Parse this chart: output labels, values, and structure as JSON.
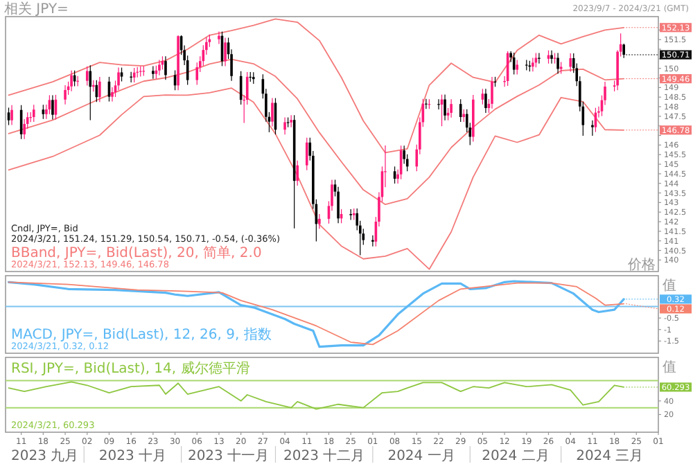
{
  "chart_data": [
    {
      "type": "candlestick",
      "title": "相关 JPY=",
      "subtitle": "2023/9/7 - 2024/3/21 (GMT)",
      "ylabel": "价格",
      "tick_labels": "y",
      "annotations": [
        "Cndl, JPY=, Bid",
        "2024/3/21, 151.24, 151.29, 150.54, 150.71, -0.54, (-0.36%)",
        "BBand, JPY=, Bid(Last), 20, 简单, 2.0",
        "2024/3/21, 152.13, 149.46, 146.78",
        {
          "text": "150.71",
          "x": "2024-03-21",
          "y": 150.71
        }
      ],
      "xlim": [
        "2023-09-06",
        "2024-04-01"
      ],
      "ylim": [
        139.4,
        152.7
      ],
      "yticks": [
        140,
        140.5,
        141,
        141.5,
        142,
        142.5,
        143,
        143.5,
        144,
        144.5,
        145,
        145.5,
        146,
        {
          "value": 146.5,
          "label": null
        },
        {
          "value": 147,
          "label": null
        },
        147.5,
        148,
        148.5,
        149,
        {
          "value": 149.5,
          "label": null
        },
        150,
        {
          "value": 150.5,
          "label": null
        },
        {
          "value": 151,
          "label": null
        },
        151.5,
        {
          "value": 152,
          "label": null
        }
      ],
      "x": [
        "2023-09-07",
        "2023-09-08",
        "2023-09-11",
        "2023-09-12",
        "2023-09-13",
        "2023-09-14",
        "2023-09-15",
        "2023-09-18",
        "2023-09-19",
        "2023-09-20",
        "2023-09-21",
        "2023-09-22",
        "2023-09-25",
        "2023-09-26",
        "2023-09-27",
        "2023-09-28",
        "2023-09-29",
        "2023-10-02",
        "2023-10-03",
        "2023-10-04",
        "2023-10-05",
        "2023-10-06",
        "2023-10-09",
        "2023-10-10",
        "2023-10-11",
        "2023-10-12",
        "2023-10-13",
        "2023-10-16",
        "2023-10-17",
        "2023-10-18",
        "2023-10-19",
        "2023-10-20",
        "2023-10-23",
        "2023-10-24",
        "2023-10-25",
        "2023-10-26",
        "2023-10-27",
        "2023-10-30",
        "2023-10-31",
        "2023-11-01",
        "2023-11-02",
        "2023-11-03",
        "2023-11-06",
        "2023-11-07",
        "2023-11-08",
        "2023-11-09",
        "2023-11-10",
        "2023-11-13",
        "2023-11-14",
        "2023-11-15",
        "2023-11-16",
        "2023-11-17",
        "2023-11-20",
        "2023-11-21",
        "2023-11-22",
        "2023-11-23",
        "2023-11-24",
        "2023-11-27",
        "2023-11-28",
        "2023-11-29",
        "2023-11-30",
        "2023-12-01",
        "2023-12-04",
        "2023-12-05",
        "2023-12-06",
        "2023-12-07",
        "2023-12-08",
        "2023-12-11",
        "2023-12-12",
        "2023-12-13",
        "2023-12-14",
        "2023-12-15",
        "2023-12-18",
        "2023-12-19",
        "2023-12-20",
        "2023-12-21",
        "2023-12-22",
        "2023-12-25",
        "2023-12-26",
        "2023-12-27",
        "2023-12-28",
        "2023-12-29",
        "2024-01-01",
        "2024-01-02",
        "2024-01-03",
        "2024-01-04",
        "2024-01-05",
        "2024-01-08",
        "2024-01-09",
        "2024-01-10",
        "2024-01-11",
        "2024-01-12",
        "2024-01-15",
        "2024-01-16",
        "2024-01-17",
        "2024-01-18",
        "2024-01-19",
        "2024-01-22",
        "2024-01-23",
        "2024-01-24",
        "2024-01-25",
        "2024-01-26",
        "2024-01-29",
        "2024-01-30",
        "2024-01-31",
        "2024-02-01",
        "2024-02-02",
        "2024-02-05",
        "2024-02-06",
        "2024-02-07",
        "2024-02-08",
        "2024-02-09",
        "2024-02-12",
        "2024-02-13",
        "2024-02-14",
        "2024-02-15",
        "2024-02-16",
        "2024-02-19",
        "2024-02-20",
        "2024-02-21",
        "2024-02-22",
        "2024-02-23",
        "2024-02-26",
        "2024-02-27",
        "2024-02-28",
        "2024-02-29",
        "2024-03-01",
        "2024-03-04",
        "2024-03-05",
        "2024-03-06",
        "2024-03-07",
        "2024-03-08",
        "2024-03-11",
        "2024-03-12",
        "2024-03-13",
        "2024-03-14",
        "2024-03-15",
        "2024-03-18",
        "2024-03-19",
        "2024-03-20",
        "2024-03-21"
      ],
      "ohlc": [
        [
          147.7,
          147.95,
          147.04,
          147.29
        ],
        [
          147.29,
          148.08,
          147.04,
          147.83
        ],
        [
          147.83,
          148.08,
          146.31,
          146.56
        ],
        [
          146.56,
          147.35,
          146.31,
          147.1
        ],
        [
          147.1,
          147.7,
          146.85,
          147.45
        ],
        [
          147.45,
          147.71,
          147.2,
          147.46
        ],
        [
          147.46,
          148.1,
          147.21,
          147.85
        ],
        [
          147.85,
          148.1,
          147.36,
          147.61
        ],
        [
          147.61,
          148.11,
          147.36,
          147.86
        ],
        [
          147.86,
          148.6,
          147.61,
          148.35
        ],
        [
          148.35,
          148.6,
          147.33,
          147.58
        ],
        [
          147.58,
          148.62,
          147.33,
          148.37
        ],
        [
          148.37,
          149.12,
          148.12,
          148.87
        ],
        [
          148.87,
          149.31,
          148.62,
          149.06
        ],
        [
          149.06,
          149.89,
          148.81,
          149.64
        ],
        [
          149.64,
          149.89,
          149.07,
          149.32
        ],
        [
          149.32,
          149.6,
          149.07,
          149.35
        ],
        [
          149.35,
          150.11,
          149.1,
          149.86
        ],
        [
          149.86,
          150.16,
          147.3,
          149.04
        ],
        [
          149.04,
          149.38,
          148.79,
          149.13
        ],
        [
          149.13,
          149.38,
          148.25,
          148.5
        ],
        [
          148.5,
          149.56,
          148.25,
          149.31
        ],
        [
          149.31,
          149.56,
          148.27,
          148.52
        ],
        [
          148.52,
          149.01,
          148.27,
          148.76
        ],
        [
          148.76,
          149.36,
          148.51,
          149.11
        ],
        [
          149.11,
          150.04,
          148.86,
          149.79
        ],
        [
          149.79,
          150.04,
          149.32,
          149.57
        ],
        [
          149.57,
          149.82,
          149.27,
          149.52
        ],
        [
          149.52,
          150.03,
          149.27,
          149.78
        ],
        [
          149.78,
          150.07,
          149.53,
          149.82
        ],
        [
          149.82,
          150.11,
          149.57,
          149.86
        ],
        [
          149.86,
          150.12,
          149.61,
          149.87
        ],
        [
          149.87,
          150.12,
          149.46,
          149.71
        ],
        [
          149.71,
          150.14,
          149.46,
          149.89
        ],
        [
          149.89,
          150.44,
          149.64,
          150.19
        ],
        [
          150.19,
          150.63,
          149.94,
          150.38
        ],
        [
          150.38,
          150.63,
          149.4,
          149.65
        ],
        [
          149.65,
          149.9,
          148.86,
          149.11
        ],
        [
          149.11,
          151.72,
          148.86,
          151.68
        ],
        [
          151.68,
          151.72,
          150.7,
          150.95
        ],
        [
          150.95,
          151.2,
          150.17,
          150.42
        ],
        [
          150.42,
          150.67,
          149.14,
          149.39
        ],
        [
          149.39,
          150.31,
          149.14,
          150.06
        ],
        [
          150.06,
          150.63,
          149.81,
          150.38
        ],
        [
          150.38,
          151.21,
          150.13,
          150.96
        ],
        [
          150.96,
          151.62,
          150.71,
          151.37
        ],
        [
          151.37,
          151.77,
          151.12,
          151.52
        ],
        [
          151.52,
          151.92,
          151.27,
          151.7
        ],
        [
          151.7,
          151.92,
          150.12,
          150.37
        ],
        [
          150.37,
          151.6,
          150.12,
          151.35
        ],
        [
          151.35,
          151.6,
          150.49,
          150.74
        ],
        [
          150.74,
          150.99,
          149.35,
          149.6
        ],
        [
          149.6,
          149.85,
          148.11,
          148.36
        ],
        [
          148.36,
          148.61,
          147.15,
          148.36
        ],
        [
          148.36,
          149.81,
          148.11,
          149.56
        ],
        [
          149.56,
          149.81,
          149.3,
          149.55
        ],
        [
          149.55,
          149.8,
          149.19,
          149.44
        ],
        [
          149.44,
          149.69,
          148.43,
          148.68
        ],
        [
          148.68,
          148.93,
          147.22,
          147.47
        ],
        [
          147.47,
          147.72,
          146.67,
          147.22
        ],
        [
          147.22,
          148.45,
          146.97,
          148.2
        ],
        [
          148.2,
          148.45,
          146.55,
          146.8
        ],
        [
          146.8,
          147.44,
          146.55,
          147.19
        ],
        [
          147.19,
          147.44,
          146.93,
          147.18
        ],
        [
          147.18,
          147.56,
          146.93,
          147.31
        ],
        [
          147.31,
          147.56,
          141.65,
          144.13
        ],
        [
          144.13,
          145.19,
          143.88,
          144.94
        ],
        [
          144.94,
          146.38,
          144.69,
          146.13
        ],
        [
          146.13,
          146.38,
          145.19,
          145.44
        ],
        [
          145.44,
          145.69,
          142.67,
          142.92
        ],
        [
          142.92,
          143.17,
          140.97,
          141.88
        ],
        [
          141.88,
          142.4,
          141.63,
          142.15
        ],
        [
          142.15,
          143.07,
          141.9,
          142.82
        ],
        [
          142.82,
          144.19,
          142.57,
          143.94
        ],
        [
          143.94,
          144.19,
          143.32,
          143.57
        ],
        [
          143.57,
          143.82,
          141.92,
          142.17
        ],
        [
          142.17,
          142.65,
          141.92,
          142.4
        ],
        [
          142.4,
          142.65,
          142.09,
          142.34
        ],
        [
          142.34,
          142.69,
          142.09,
          142.44
        ],
        [
          142.44,
          142.69,
          141.55,
          141.8
        ],
        [
          141.8,
          142.05,
          140.25,
          141.38
        ],
        [
          141.38,
          141.63,
          140.79,
          141.04
        ],
        [
          141.04,
          141.29,
          140.71,
          140.96
        ],
        [
          140.96,
          142.25,
          140.71,
          142.0
        ],
        [
          142.0,
          143.54,
          141.75,
          143.29
        ],
        [
          143.29,
          144.88,
          143.04,
          144.63
        ],
        [
          144.63,
          145.98,
          143.8,
          144.63
        ],
        [
          144.63,
          144.88,
          143.99,
          144.24
        ],
        [
          144.24,
          144.72,
          143.99,
          144.47
        ],
        [
          144.47,
          145.97,
          144.22,
          145.72
        ],
        [
          145.72,
          145.97,
          145.02,
          145.27
        ],
        [
          145.27,
          145.52,
          144.63,
          144.88
        ],
        [
          144.88,
          146.02,
          144.63,
          145.77
        ],
        [
          145.77,
          147.44,
          145.52,
          147.19
        ],
        [
          147.19,
          148.41,
          146.94,
          148.16
        ],
        [
          148.16,
          148.41,
          147.88,
          148.13
        ],
        [
          148.13,
          148.39,
          147.88,
          148.14
        ],
        [
          148.14,
          148.39,
          147.86,
          148.11
        ],
        [
          148.11,
          148.63,
          146.98,
          148.38
        ],
        [
          148.38,
          148.63,
          147.29,
          147.54
        ],
        [
          147.54,
          147.93,
          147.29,
          147.68
        ],
        [
          147.68,
          148.39,
          147.43,
          148.14
        ],
        [
          148.14,
          148.39,
          147.21,
          147.46
        ],
        [
          147.46,
          147.87,
          147.21,
          147.62
        ],
        [
          147.62,
          147.87,
          146.66,
          146.91
        ],
        [
          146.91,
          147.16,
          146.0,
          146.43
        ],
        [
          146.43,
          148.62,
          146.18,
          148.37
        ],
        [
          148.37,
          148.93,
          148.12,
          148.68
        ],
        [
          148.68,
          148.93,
          147.68,
          147.93
        ],
        [
          147.93,
          148.4,
          147.68,
          148.15
        ],
        [
          148.15,
          149.56,
          147.9,
          149.31
        ],
        [
          149.31,
          149.56,
          149.04,
          149.29
        ],
        [
          149.29,
          149.59,
          149.04,
          149.34
        ],
        [
          149.34,
          150.89,
          149.09,
          150.8
        ],
        [
          150.8,
          150.89,
          150.32,
          150.57
        ],
        [
          150.57,
          150.82,
          149.68,
          149.93
        ],
        [
          149.93,
          150.44,
          149.68,
          150.19
        ],
        [
          150.19,
          150.44,
          149.9,
          150.15
        ],
        [
          150.15,
          150.4,
          149.84,
          150.09
        ],
        [
          150.09,
          150.55,
          149.84,
          150.3
        ],
        [
          150.3,
          150.8,
          150.05,
          150.55
        ],
        [
          150.55,
          150.8,
          150.25,
          150.5
        ],
        [
          150.5,
          150.94,
          150.25,
          150.69
        ],
        [
          150.69,
          150.94,
          150.25,
          150.5
        ],
        [
          150.5,
          150.8,
          150.25,
          150.55
        ],
        [
          150.55,
          150.8,
          149.72,
          149.97
        ],
        [
          149.97,
          150.33,
          149.72,
          150.08
        ],
        [
          150.08,
          150.78,
          149.83,
          150.53
        ],
        [
          150.53,
          150.78,
          149.76,
          150.01
        ],
        [
          150.01,
          150.26,
          149.08,
          149.33
        ],
        [
          149.33,
          149.58,
          147.76,
          148.01
        ],
        [
          148.01,
          148.26,
          146.48,
          147.04
        ],
        [
          147.04,
          147.29,
          146.48,
          146.93
        ],
        [
          146.93,
          147.94,
          146.68,
          147.69
        ],
        [
          147.69,
          148.01,
          147.44,
          147.76
        ],
        [
          147.76,
          148.59,
          147.51,
          148.34
        ],
        [
          148.34,
          149.3,
          148.09,
          149.05
        ],
        [
          149.05,
          149.36,
          148.8,
          149.11
        ],
        [
          149.11,
          150.95,
          148.86,
          150.87
        ],
        [
          150.87,
          151.82,
          150.62,
          151.26
        ],
        [
          151.24,
          151.29,
          150.54,
          150.71
        ]
      ],
      "series": [
        {
          "type": "line",
          "color": "#f47a7a",
          "x": [
            "2023-09-07",
            "2023-09-21",
            "2023-10-06",
            "2023-10-13",
            "2023-10-20",
            "2023-10-27",
            "2023-11-03",
            "2023-11-10",
            "2023-11-17",
            "2023-11-24",
            "2023-12-01",
            "2023-12-08",
            "2023-12-15",
            "2023-12-22",
            "2023-12-29",
            "2024-01-05",
            "2024-01-12",
            "2024-01-19",
            "2024-01-26",
            "2024-02-02",
            "2024-02-09",
            "2024-02-16",
            "2024-02-23",
            "2024-03-01",
            "2024-03-08",
            "2024-03-15",
            "2024-03-21"
          ],
          "values": [
            148.6,
            149.3,
            150.31,
            150.18,
            150.13,
            150.41,
            151.0,
            151.73,
            151.97,
            152.24,
            152.58,
            152.41,
            151.45,
            149.53,
            147.26,
            145.6,
            145.8,
            149.12,
            150.27,
            149.53,
            149.27,
            150.94,
            151.73,
            151.28,
            151.66,
            152.0,
            152.13
          ],
          "value_labels": [
            null,
            null,
            null,
            null,
            null,
            null,
            null,
            null,
            null,
            null,
            null,
            null,
            null,
            null,
            null,
            null,
            null,
            null,
            null,
            null,
            null,
            null,
            null,
            null,
            null,
            null,
            "152.13"
          ]
        },
        {
          "type": "line",
          "color": "#f47a7a",
          "x": [
            "2023-09-07",
            "2023-09-21",
            "2023-10-06",
            "2023-10-13",
            "2023-10-20",
            "2023-10-27",
            "2023-11-03",
            "2023-11-10",
            "2023-11-17",
            "2023-11-24",
            "2023-12-01",
            "2023-12-08",
            "2023-12-15",
            "2023-12-22",
            "2023-12-29",
            "2024-01-05",
            "2024-01-12",
            "2024-01-19",
            "2024-01-26",
            "2024-02-02",
            "2024-02-09",
            "2024-02-16",
            "2024-02-23",
            "2024-03-01",
            "2024-03-08",
            "2024-03-15",
            "2024-03-21"
          ],
          "values": [
            146.6,
            147.3,
            148.41,
            148.88,
            149.33,
            149.51,
            149.8,
            150.23,
            150.47,
            150.24,
            149.58,
            148.41,
            146.65,
            145.13,
            143.66,
            142.9,
            143.2,
            144.32,
            145.87,
            146.93,
            147.87,
            148.54,
            149.13,
            149.88,
            149.96,
            149.4,
            149.46
          ],
          "value_labels": [
            null,
            null,
            null,
            null,
            null,
            null,
            null,
            null,
            null,
            null,
            null,
            null,
            null,
            null,
            null,
            null,
            null,
            null,
            null,
            null,
            null,
            null,
            null,
            null,
            null,
            null,
            "149.46"
          ]
        },
        {
          "type": "line",
          "color": "#f47a7a",
          "x": [
            "2023-09-07",
            "2023-09-21",
            "2023-10-06",
            "2023-10-13",
            "2023-10-20",
            "2023-10-27",
            "2023-11-03",
            "2023-11-10",
            "2023-11-17",
            "2023-11-24",
            "2023-12-01",
            "2023-12-08",
            "2023-12-15",
            "2023-12-22",
            "2023-12-29",
            "2024-01-05",
            "2024-01-12",
            "2024-01-19",
            "2024-01-26",
            "2024-02-02",
            "2024-02-09",
            "2024-02-16",
            "2024-02-23",
            "2024-03-01",
            "2024-03-08",
            "2024-03-15",
            "2024-03-21"
          ],
          "values": [
            144.7,
            145.4,
            146.51,
            147.58,
            148.53,
            148.61,
            148.6,
            148.73,
            148.97,
            148.24,
            146.58,
            144.41,
            141.85,
            140.73,
            140.06,
            140.2,
            140.6,
            139.52,
            141.47,
            144.33,
            146.47,
            146.14,
            146.53,
            148.48,
            148.26,
            146.8,
            146.78
          ],
          "value_labels": [
            null,
            null,
            null,
            null,
            null,
            null,
            null,
            null,
            null,
            null,
            null,
            null,
            null,
            null,
            null,
            null,
            null,
            null,
            null,
            null,
            null,
            null,
            null,
            null,
            null,
            null,
            "146.78"
          ]
        }
      ]
    },
    {
      "type": "line",
      "ylabel": "值",
      "tick_labels": "y",
      "annotations": [
        "MACD, JPY=, Bid(Last), 12, 26, 9, 指数",
        "2024/3/21, 0.32, 0.12"
      ],
      "xlim": [
        "2023-09-06",
        "2024-04-01"
      ],
      "ylim": [
        -2.03,
        1.34
      ],
      "yticks": [
        -1.5,
        -1,
        -0.5
      ],
      "ref_lines": [
        {
          "axis": "y",
          "value": 0,
          "color": "#7cc4f2"
        }
      ],
      "series": [
        {
          "color": "#5bb8f5",
          "x": [
            "2023-09-07",
            "2023-09-15",
            "2023-09-26",
            "2023-10-11",
            "2023-10-27",
            "2023-10-30",
            "2023-11-03",
            "2023-11-13",
            "2023-11-20",
            "2023-11-24",
            "2023-12-04",
            "2023-12-07",
            "2023-12-13",
            "2023-12-15",
            "2023-12-22",
            "2023-12-29",
            "2024-01-03",
            "2024-01-09",
            "2024-01-17",
            "2024-01-23",
            "2024-01-29",
            "2024-02-01",
            "2024-02-06",
            "2024-02-12",
            "2024-02-15",
            "2024-02-27",
            "2024-03-05",
            "2024-03-11",
            "2024-03-13",
            "2024-03-18",
            "2024-03-21"
          ],
          "values": [
            1.06,
            0.96,
            0.76,
            0.72,
            0.6,
            0.52,
            0.46,
            0.62,
            0.06,
            -0.04,
            -0.54,
            -0.75,
            -1.05,
            -1.75,
            -1.69,
            -1.69,
            -1.25,
            -0.34,
            0.56,
            1.0,
            1.0,
            0.76,
            0.8,
            1.06,
            1.1,
            1.02,
            0.56,
            -0.14,
            -0.24,
            -0.14,
            0.32
          ],
          "value_labels": [
            null,
            null,
            null,
            null,
            null,
            null,
            null,
            null,
            null,
            null,
            null,
            null,
            null,
            null,
            null,
            null,
            null,
            null,
            null,
            null,
            null,
            null,
            null,
            null,
            null,
            null,
            null,
            null,
            null,
            null,
            "0.32"
          ]
        },
        {
          "color": "#f5826e",
          "x": [
            "2023-09-07",
            "2023-09-26",
            "2023-10-18",
            "2023-11-03",
            "2023-11-14",
            "2023-11-20",
            "2023-11-30",
            "2023-12-14",
            "2023-12-25",
            "2024-01-01",
            "2024-01-09",
            "2024-01-22",
            "2024-01-29",
            "2024-02-12",
            "2024-02-16",
            "2024-02-27",
            "2024-03-06",
            "2024-03-12",
            "2024-03-15",
            "2024-03-21"
          ],
          "values": [
            1.06,
            0.96,
            0.72,
            0.66,
            0.6,
            0.26,
            -0.14,
            -0.84,
            -1.55,
            -1.65,
            -1.05,
            0.26,
            0.76,
            0.96,
            1.02,
            1.02,
            0.86,
            0.36,
            0.06,
            0.12
          ],
          "value_labels": [
            null,
            null,
            null,
            null,
            null,
            null,
            null,
            null,
            null,
            null,
            null,
            null,
            null,
            null,
            null,
            null,
            null,
            null,
            null,
            "0.12"
          ]
        }
      ]
    },
    {
      "type": "line",
      "ylabel": "值",
      "annotations": [
        "RSI, JPY=, Bid(Last), 14, 威尔德平滑",
        "2024/3/21, 60.293",
        "2023 九月",
        "2023 十月",
        "2023 十一月",
        "2023 十二月",
        "2024 一月",
        "2024 二月",
        "2024 三月"
      ],
      "xlim": [
        "2023-09-06",
        "2024-04-01"
      ],
      "ylim": [
        -6,
        104
      ],
      "yticks": [
        20,
        40
      ],
      "xticks": [
        {
          "value": "2023-09-11",
          "label": "11"
        },
        {
          "value": "2023-09-18",
          "label": "18"
        },
        {
          "value": "2023-09-25",
          "label": "25"
        },
        {
          "value": "2023-10-02",
          "label": "02"
        },
        {
          "value": "2023-10-09",
          "label": "09"
        },
        {
          "value": "2023-10-16",
          "label": "16"
        },
        {
          "value": "2023-10-23",
          "label": "23"
        },
        {
          "value": "2023-10-30",
          "label": "30"
        },
        {
          "value": "2023-11-06",
          "label": "06"
        },
        {
          "value": "2023-11-13",
          "label": "13"
        },
        {
          "value": "2023-11-20",
          "label": "20"
        },
        {
          "value": "2023-11-27",
          "label": "27"
        },
        {
          "value": "2023-12-04",
          "label": "04"
        },
        {
          "value": "2023-12-11",
          "label": "11"
        },
        {
          "value": "2023-12-18",
          "label": "18"
        },
        {
          "value": "2023-12-25",
          "label": "25"
        },
        {
          "value": "2024-01-01",
          "label": "01"
        },
        {
          "value": "2024-01-08",
          "label": "08"
        },
        {
          "value": "2024-01-15",
          "label": "15"
        },
        {
          "value": "2024-01-22",
          "label": "22"
        },
        {
          "value": "2024-01-29",
          "label": "29"
        },
        {
          "value": "2024-02-05",
          "label": "05"
        },
        {
          "value": "2024-02-12",
          "label": "12"
        },
        {
          "value": "2024-02-19",
          "label": "19"
        },
        {
          "value": "2024-02-26",
          "label": "26"
        },
        {
          "value": "2024-03-04",
          "label": "04"
        },
        {
          "value": "2024-03-11",
          "label": "11"
        },
        {
          "value": "2024-03-18",
          "label": "18"
        },
        {
          "value": "2024-03-25",
          "label": "25"
        },
        {
          "value": "2024-04-01",
          "label": "01"
        }
      ],
      "ref_lines": [
        {
          "axis": "y",
          "value": 70,
          "color": "#a8d86e"
        },
        {
          "axis": "y",
          "value": 30,
          "color": "#a8d86e"
        }
      ],
      "series": [
        {
          "color": "#8dc63f",
          "x": [
            "2023-09-07",
            "2023-09-12",
            "2023-09-19",
            "2023-09-27",
            "2023-10-02",
            "2023-10-09",
            "2023-10-16",
            "2023-10-25",
            "2023-10-27",
            "2023-10-31",
            "2023-11-03",
            "2023-11-13",
            "2023-11-20",
            "2023-11-22",
            "2023-11-28",
            "2023-12-06",
            "2023-12-08",
            "2023-12-14",
            "2023-12-21",
            "2023-12-29",
            "2024-01-04",
            "2024-01-09",
            "2024-01-12",
            "2024-01-17",
            "2024-01-23",
            "2024-01-29",
            "2024-02-02",
            "2024-02-07",
            "2024-02-12",
            "2024-02-19",
            "2024-02-27",
            "2024-03-04",
            "2024-03-08",
            "2024-03-13",
            "2024-03-18",
            "2024-03-21"
          ],
          "values": [
            59,
            54,
            61,
            68,
            63,
            52,
            61,
            63,
            50,
            66,
            50,
            61,
            40,
            49,
            39,
            30,
            39,
            28,
            35,
            30,
            52,
            54,
            59,
            67,
            67,
            54,
            61,
            59,
            67,
            61,
            64,
            56,
            34,
            39,
            63,
            60.293
          ],
          "value_labels": [
            null,
            null,
            null,
            null,
            null,
            null,
            null,
            null,
            null,
            null,
            null,
            null,
            null,
            null,
            null,
            null,
            null,
            null,
            null,
            null,
            null,
            null,
            null,
            null,
            null,
            null,
            null,
            null,
            null,
            null,
            null,
            null,
            null,
            null,
            null,
            "60.293"
          ]
        }
      ]
    }
  ]
}
